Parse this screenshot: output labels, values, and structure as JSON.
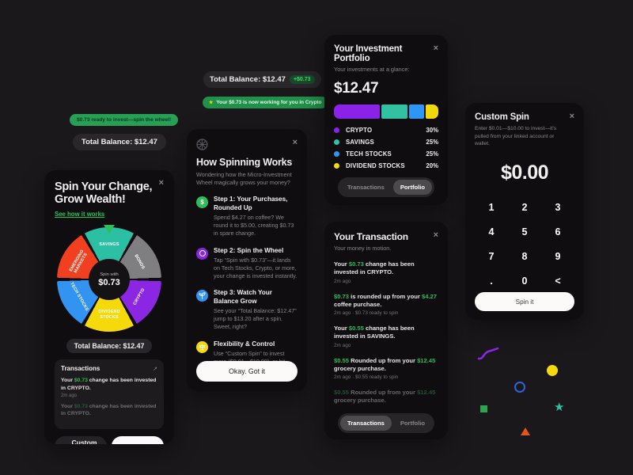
{
  "colors": {
    "page_bg": "#1B181B",
    "card_bg": "#0F0D10",
    "accent_green": "#2EBD59",
    "badge_green": "#27A055"
  },
  "icons": {
    "close": "×",
    "external_link": "↗",
    "plus": "+",
    "backspace": "<",
    "spark": "★",
    "wheel_glyph": "✳"
  },
  "badges": {
    "ready": "$0.73 ready to invest—spin the wheel!",
    "balance_left": "Total Balance: $12.47",
    "balance_mid": "Total Balance: $12.47",
    "balance_delta": "+$0.73",
    "working": "Your $0.73 is now working for you in Crypto"
  },
  "spin_card": {
    "title_line1": "Spin Your Change,",
    "title_line2": "Grow Wealth!",
    "link": "See how it works",
    "wheel": {
      "center_label": "Spin with",
      "center_amount": "$0.73",
      "segments": [
        {
          "label": "SAVINGS",
          "color": "#2BBFA4"
        },
        {
          "label": "BONDS",
          "color": "#7F7F82"
        },
        {
          "label": "CRYPTO",
          "color": "#8B26E3"
        },
        {
          "label": "DIVIDEND STOCKS",
          "color": "#F5D90B"
        },
        {
          "label": "TECH STOCKS",
          "color": "#3293F0"
        },
        {
          "label": "EMERGING MARKETS",
          "color": "#F0401F"
        }
      ]
    },
    "balance_pill": "Total Balance: $12.47",
    "transactions_header": "Transactions",
    "transactions": [
      {
        "segments": [
          {
            "t": "Your "
          },
          {
            "t": "$0.73",
            "green": true
          },
          {
            "t": " change has been invested in CRYPTO."
          }
        ],
        "meta": "2m ago",
        "faded": false
      },
      {
        "segments": [
          {
            "t": "Your "
          },
          {
            "t": "$0.73",
            "green": true
          },
          {
            "t": " change has been invested in CRYPTO."
          }
        ],
        "meta": "",
        "faded": true
      }
    ],
    "custom_spin_label": "Custom Spin",
    "spin_later_label": "Spin Later"
  },
  "how_card": {
    "title": "How Spinning Works",
    "subtitle": "Wondering how the Micro-Investment Wheel magically grows your money?",
    "steps": [
      {
        "icon": "dollar-icon",
        "color": "#2EBD59",
        "title": "Step 1: Your Purchases, Rounded Up",
        "body": "Spend $4.27 on coffee? We round it to $5.00, creating $0.73 in spare change."
      },
      {
        "icon": "target-icon",
        "color": "#8B26E3",
        "title": "Step 2: Spin the Wheel",
        "body": "Tap “Spin with $0.73”—it lands on Tech Stocks, Crypto, or more, your change is invested instantly."
      },
      {
        "icon": "growth-icon",
        "color": "#3293F0",
        "title": "Step 3: Watch Your Balance Grow",
        "body": "See your “Total Balance: $12.47” jump to $13.20 after a spin. Sweet, right?"
      },
      {
        "icon": "balance-icon",
        "color": "#F5D90B",
        "title": "Flexibility & Control",
        "body": "Use “Custom Spin” to invest more ($0.01—$10.00), or hit “Spin Later” if you're not ready."
      }
    ],
    "button": "Okay. Got it"
  },
  "portfolio_card": {
    "title": "Your Investment Portfolio",
    "subtitle": "Your investments at a glance:",
    "total": "$12.47",
    "legend": [
      {
        "label": "CRYPTO",
        "pct": "30%",
        "color": "#8B22E8",
        "bar": 41
      },
      {
        "label": "SAVINGS",
        "pct": "25%",
        "color": "#32C1A1",
        "bar": 23
      },
      {
        "label": "TECH STOCKS",
        "pct": "25%",
        "color": "#2E96F5",
        "bar": 14
      },
      {
        "label": "DIVIDEND STOCKS",
        "pct": "20%",
        "color": "#F2D90C",
        "bar": 11
      }
    ],
    "tab_transactions": "Transactions",
    "tab_portfolio": "Portfolio"
  },
  "transaction_card": {
    "title": "Your Transaction",
    "subtitle": "Your money in motion.",
    "items": [
      {
        "segments": [
          {
            "t": "Your "
          },
          {
            "t": "$0.73",
            "green": true
          },
          {
            "t": " change has been invested in CRYPTO."
          }
        ],
        "meta": "2m ago",
        "faded": false
      },
      {
        "segments": [
          {
            "t": "$0.73",
            "green": true
          },
          {
            "t": " is rounded up from your "
          },
          {
            "t": "$4.27",
            "green": true
          },
          {
            "t": " coffee purchase."
          }
        ],
        "meta": "2m ago · $0.73 ready to spin",
        "faded": false
      },
      {
        "segments": [
          {
            "t": "Your "
          },
          {
            "t": "$0.55",
            "green": true
          },
          {
            "t": " change has been invested in SAVINGS."
          }
        ],
        "meta": "2m ago",
        "faded": false
      },
      {
        "segments": [
          {
            "t": "$0.55",
            "green": true
          },
          {
            "t": " Rounded up from your "
          },
          {
            "t": "$12.45",
            "green": true
          },
          {
            "t": " grocery purchase."
          }
        ],
        "meta": "2m ago · $0.55 ready to spin",
        "faded": false
      },
      {
        "segments": [
          {
            "t": "$0.55",
            "green": true
          },
          {
            "t": " Rounded up from your "
          },
          {
            "t": "$12.45",
            "green": true
          },
          {
            "t": " grocery purchase."
          }
        ],
        "meta": "",
        "faded": true
      }
    ],
    "tab_transactions": "Transactions",
    "tab_portfolio": "Portfolio"
  },
  "custom_spin_card": {
    "title": "Custom Spin",
    "subtitle": "Enter $0.01—$10.00 to invest—it's pulled from your linked account or wallet.",
    "amount": "$0.00",
    "keys": [
      "1",
      "2",
      "3",
      "4",
      "5",
      "6",
      "7",
      "8",
      "9",
      ".",
      "0",
      "<"
    ],
    "button": "Spin it"
  },
  "decor": [
    {
      "name": "purple-squiggle",
      "type": "squiggle",
      "color": "#8B26E3"
    },
    {
      "name": "yellow-dot",
      "type": "dot",
      "color": "#F5D90B"
    },
    {
      "name": "blue-ring",
      "type": "ring",
      "color": "#2E63D9"
    },
    {
      "name": "green-square",
      "type": "square",
      "color": "#2DA44E"
    },
    {
      "name": "teal-star",
      "type": "star",
      "color": "#2EBFA5"
    },
    {
      "name": "orange-triangle",
      "type": "triangle",
      "color": "#E8551C"
    }
  ]
}
